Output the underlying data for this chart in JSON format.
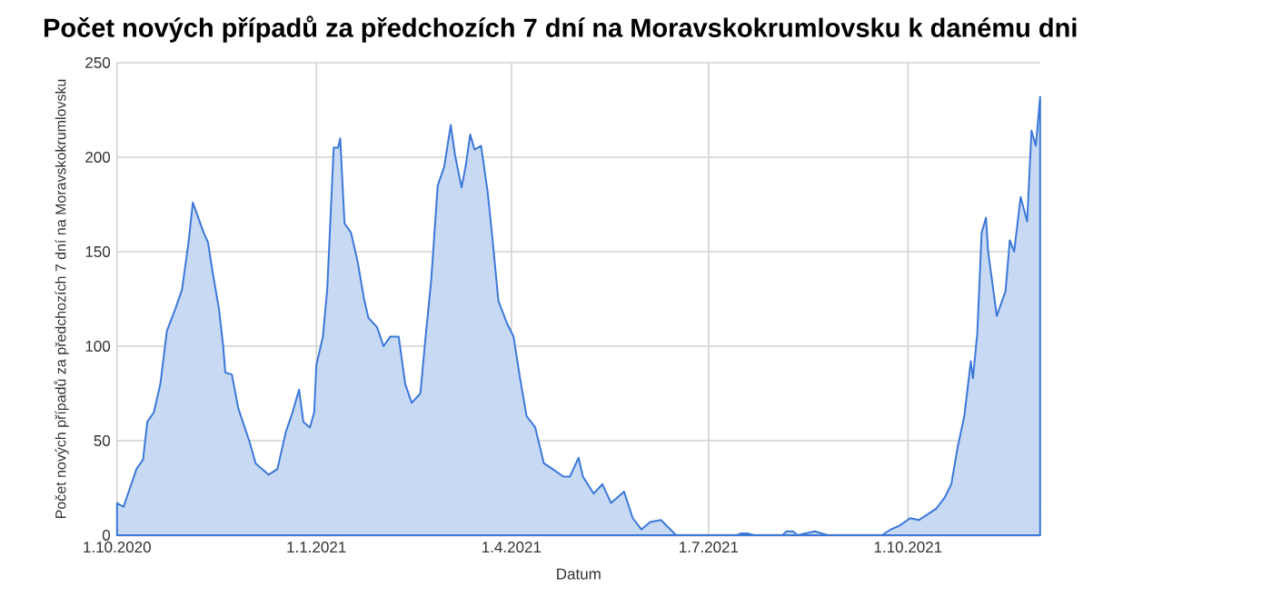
{
  "chart_data": {
    "type": "area",
    "title": "Počet nových případů za předchozích 7 dní na Moravskokrumlovsku k danému dni",
    "xlabel": "Datum",
    "ylabel": "Počet nových případů za předchozích 7 dní na Moravskokrumlovsku",
    "x": [
      "2020-10-01",
      "2020-10-04",
      "2020-10-07",
      "2020-10-10",
      "2020-10-13",
      "2020-10-15",
      "2020-10-18",
      "2020-10-21",
      "2020-10-24",
      "2020-10-28",
      "2020-10-31",
      "2020-11-03",
      "2020-11-05",
      "2020-11-10",
      "2020-11-12",
      "2020-11-14",
      "2020-11-17",
      "2020-11-19",
      "2020-11-20",
      "2020-11-23",
      "2020-11-26",
      "2020-12-01",
      "2020-12-04",
      "2020-12-07",
      "2020-12-10",
      "2020-12-14",
      "2020-12-16",
      "2020-12-18",
      "2020-12-21",
      "2020-12-24",
      "2020-12-26",
      "2020-12-29",
      "2020-12-31",
      "2021-01-01",
      "2021-01-04",
      "2021-01-06",
      "2021-01-09",
      "2021-01-11",
      "2021-01-12",
      "2021-01-14",
      "2021-01-17",
      "2021-01-20",
      "2021-01-23",
      "2021-01-25",
      "2021-01-29",
      "2021-02-01",
      "2021-02-04",
      "2021-02-08",
      "2021-02-11",
      "2021-02-14",
      "2021-02-18",
      "2021-02-20",
      "2021-02-23",
      "2021-02-26",
      "2021-03-01",
      "2021-03-04",
      "2021-03-06",
      "2021-03-09",
      "2021-03-11",
      "2021-03-13",
      "2021-03-15",
      "2021-03-18",
      "2021-03-21",
      "2021-03-23",
      "2021-03-26",
      "2021-03-30",
      "2021-04-02",
      "2021-04-05",
      "2021-04-08",
      "2021-04-12",
      "2021-04-16",
      "2021-04-20",
      "2021-04-25",
      "2021-04-28",
      "2021-05-02",
      "2021-05-04",
      "2021-05-09",
      "2021-05-13",
      "2021-05-17",
      "2021-05-23",
      "2021-05-27",
      "2021-05-31",
      "2021-06-04",
      "2021-06-09",
      "2021-06-16",
      "2021-06-24",
      "2021-07-14",
      "2021-07-16",
      "2021-07-19",
      "2021-07-22",
      "2021-08-04",
      "2021-08-06",
      "2021-08-09",
      "2021-08-11",
      "2021-08-19",
      "2021-08-25",
      "2021-09-11",
      "2021-09-19",
      "2021-09-23",
      "2021-09-27",
      "2021-10-02",
      "2021-10-06",
      "2021-10-10",
      "2021-10-14",
      "2021-10-18",
      "2021-10-21",
      "2021-10-24",
      "2021-10-27",
      "2021-10-30",
      "2021-10-31",
      "2021-11-02",
      "2021-11-04",
      "2021-11-06",
      "2021-11-07",
      "2021-11-11",
      "2021-11-15",
      "2021-11-17",
      "2021-11-19",
      "2021-11-22",
      "2021-11-25",
      "2021-11-27",
      "2021-11-29",
      "2021-12-01"
    ],
    "series": [
      {
        "color": "#3c78d8",
        "values": [
          17,
          15,
          25,
          35,
          40,
          60,
          65,
          80,
          108,
          120,
          130,
          155,
          176,
          160,
          155,
          140,
          120,
          100,
          86,
          85,
          67,
          50,
          38,
          35,
          32,
          35,
          45,
          55,
          65,
          77,
          60,
          57,
          65,
          90,
          105,
          130,
          205,
          205,
          210,
          165,
          160,
          145,
          125,
          115,
          110,
          100,
          105,
          105,
          80,
          70,
          75,
          100,
          135,
          185,
          195,
          217,
          201,
          184,
          196,
          212,
          204,
          206,
          182,
          160,
          124,
          112,
          105,
          83,
          63,
          57,
          38,
          35,
          31,
          31,
          41,
          31,
          22,
          27,
          17,
          23,
          9,
          3,
          7,
          8,
          0,
          0,
          0,
          1,
          1,
          0,
          0,
          2,
          2,
          0,
          2,
          0,
          0,
          0,
          3,
          5,
          9,
          8,
          11,
          14,
          20,
          27,
          47,
          63,
          92,
          83,
          107,
          160,
          168,
          150,
          116,
          129,
          156,
          150,
          179,
          166,
          214,
          206,
          232
        ]
      }
    ],
    "xlim": [
      "2020-10-01",
      "2021-12-01"
    ],
    "xticks": [
      {
        "value": "2020-10-01",
        "label": "1.10.2020"
      },
      {
        "value": "2021-01-01",
        "label": "1.1.2021"
      },
      {
        "value": "2021-04-01",
        "label": "1.4.2021"
      },
      {
        "value": "2021-07-01",
        "label": "1.7.2021"
      },
      {
        "value": "2021-10-01",
        "label": "1.10.2021"
      }
    ],
    "ylim": [
      0,
      250
    ],
    "yticks": [
      0,
      50,
      100,
      150,
      200,
      250
    ],
    "grid": true
  }
}
